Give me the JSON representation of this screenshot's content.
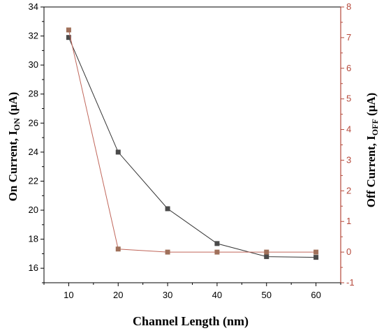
{
  "chart_data": {
    "type": "line",
    "x": [
      10,
      20,
      30,
      40,
      50,
      60
    ],
    "xlim": [
      5,
      65
    ],
    "xticks": [
      10,
      20,
      30,
      40,
      50,
      60
    ],
    "xlabel": "Channel Length (nm)",
    "y_left": {
      "label_main": "On Current, I",
      "label_sub": "ON",
      "label_unit": " (μA)",
      "ylim": [
        15,
        34
      ],
      "ticks": [
        16,
        18,
        20,
        22,
        24,
        26,
        28,
        30,
        32,
        34
      ],
      "color": "#000000"
    },
    "y_right": {
      "label_main": "Off Current, I",
      "label_sub": "OFF",
      "label_unit": " (μA)",
      "ylim": [
        -1,
        8
      ],
      "ticks": [
        -1,
        0,
        1,
        2,
        3,
        4,
        5,
        6,
        7,
        8
      ],
      "color": "#b5483a"
    },
    "series": [
      {
        "axis": "left",
        "values": [
          31.9,
          24.0,
          20.1,
          17.7,
          16.8,
          16.75
        ],
        "line_color": "#333333",
        "marker_color": "#4a4a4a"
      },
      {
        "axis": "right",
        "values": [
          7.25,
          0.1,
          0.0,
          0.0,
          0.0,
          0.0
        ],
        "line_color": "#c0665a",
        "marker_color": "#a0705a"
      }
    ],
    "grid": false,
    "legend": "none"
  }
}
